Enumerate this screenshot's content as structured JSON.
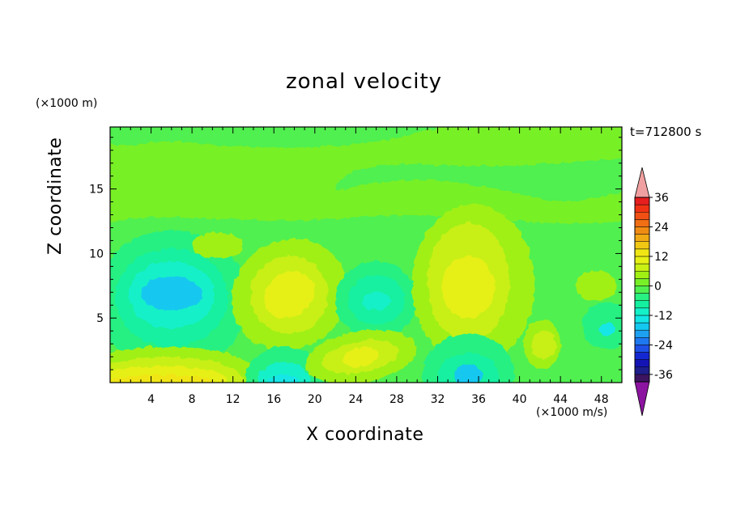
{
  "chart_data": {
    "type": "heatmap",
    "title": "zonal velocity",
    "xlabel": "X coordinate",
    "ylabel": "Z coordinate",
    "x_unit": "(×1000 m/s)",
    "y_unit": "(×1000 m)",
    "time_label": "t=712800 s",
    "xlim": [
      0,
      50
    ],
    "ylim": [
      0,
      19.8
    ],
    "x_ticks": [
      4,
      8,
      12,
      16,
      20,
      24,
      28,
      32,
      36,
      40,
      44,
      48
    ],
    "y_ticks": [
      5,
      10,
      15
    ],
    "colorbar": {
      "levels": [
        -42,
        -39,
        -36,
        -33,
        -30,
        -27,
        -24,
        -21,
        -18,
        -15,
        -12,
        -9,
        -6,
        -3,
        0,
        3,
        6,
        9,
        12,
        15,
        18,
        21,
        24,
        27,
        30,
        33,
        36,
        39,
        42
      ],
      "tick_labels": [
        "36",
        "24",
        "12",
        "0",
        "-12",
        "-24",
        "-36"
      ],
      "tick_values": [
        36,
        24,
        12,
        0,
        -12,
        -24,
        -36
      ],
      "colors": [
        "#3c1460",
        "#1e1e8c",
        "#1414b4",
        "#1428d2",
        "#1e50e6",
        "#1e78f0",
        "#1ea0f0",
        "#14c8f0",
        "#14e6e6",
        "#14f0c8",
        "#14f0a0",
        "#28f082",
        "#50f050",
        "#78f028",
        "#a0f014",
        "#c8f014",
        "#e6f014",
        "#f0e614",
        "#f0c814",
        "#f0aa14",
        "#f08c14",
        "#f06e14",
        "#f05014",
        "#f03214",
        "#e61e1e"
      ],
      "under_color": "#8c14a0",
      "over_color": "#f0a0a0"
    },
    "field_features": [
      {
        "name": "background",
        "value": -3
      },
      {
        "name": "upper band",
        "value": 0
      },
      {
        "name": "low 1",
        "x": 6,
        "z": 6.9,
        "value": -18
      },
      {
        "name": "high 1",
        "x": 17.5,
        "z": 6.8,
        "value": 9
      },
      {
        "name": "low 2",
        "x": 26,
        "z": 6.2,
        "value": -12
      },
      {
        "name": "high 2",
        "x": 35,
        "z": 7.5,
        "value": 9
      },
      {
        "name": "high bottom",
        "x": 5,
        "z": 0.3,
        "value": 12
      },
      {
        "name": "low bottom 1",
        "x": 17,
        "z": 0.3,
        "value": -15
      },
      {
        "name": "low bottom 2",
        "x": 35,
        "z": 0.8,
        "value": -18
      },
      {
        "name": "high 3",
        "x": 24.5,
        "z": 2,
        "value": 9
      },
      {
        "name": "high 4",
        "x": 42,
        "z": 3,
        "value": 3
      },
      {
        "name": "low 3",
        "x": 48.5,
        "z": 4.2,
        "value": -15
      }
    ]
  }
}
